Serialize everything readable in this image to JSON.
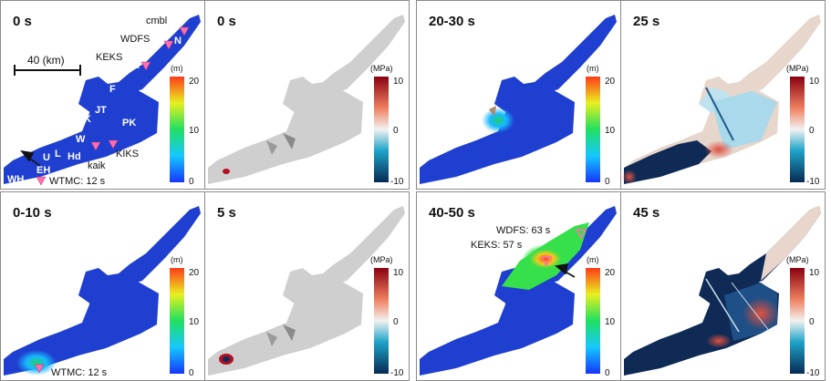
{
  "panels": [
    {
      "id": "p1",
      "time": "0 s",
      "colorbar_unit": "(m)",
      "colorbar_ticks": [
        "20",
        "10",
        "0"
      ]
    },
    {
      "id": "p2",
      "time": "0 s",
      "colorbar_unit": "(MPa)",
      "colorbar_ticks": [
        "10",
        "0",
        "-10"
      ]
    },
    {
      "id": "p3",
      "time": "20-30 s",
      "colorbar_unit": "(m)",
      "colorbar_ticks": [
        "20",
        "10",
        "0"
      ]
    },
    {
      "id": "p4",
      "time": "25 s",
      "colorbar_unit": "(MPa)",
      "colorbar_ticks": [
        "10",
        "0",
        "-10"
      ]
    },
    {
      "id": "p5",
      "time": "0-10 s",
      "colorbar_unit": "(m)",
      "colorbar_ticks": [
        "20",
        "10",
        "0"
      ]
    },
    {
      "id": "p6",
      "time": "5 s",
      "colorbar_unit": "(MPa)",
      "colorbar_ticks": [
        "10",
        "0",
        "-10"
      ]
    },
    {
      "id": "p7",
      "time": "40-50 s",
      "colorbar_unit": "(m)",
      "colorbar_ticks": [
        "20",
        "10",
        "0"
      ]
    },
    {
      "id": "p8",
      "time": "45 s",
      "colorbar_unit": "(MPa)",
      "colorbar_ticks": [
        "10",
        "0",
        "-10"
      ]
    }
  ],
  "scale_bar": "40 (km)",
  "fault_labels": [
    "WH",
    "EH",
    "U",
    "L",
    "Hd",
    "W",
    "UK",
    "JT",
    "F",
    "PK",
    "K",
    "N"
  ],
  "stations": {
    "cmbl": "cmbl",
    "wdfs": "WDFS",
    "keks": "KEKS",
    "kiks": "KIKS",
    "kaik": "kaik",
    "wtmc_p1": "WTMC: 12 s",
    "wtmc_p5": "WTMC: 12 s",
    "wdfs_p7": "WDFS: 63 s",
    "keks_p7": "KEKS: 57 s"
  },
  "colors": {
    "fault_blue": "#1f3fd0",
    "neutral_grey": "#cfcfcf",
    "station_marker": "#ff6fb0"
  }
}
